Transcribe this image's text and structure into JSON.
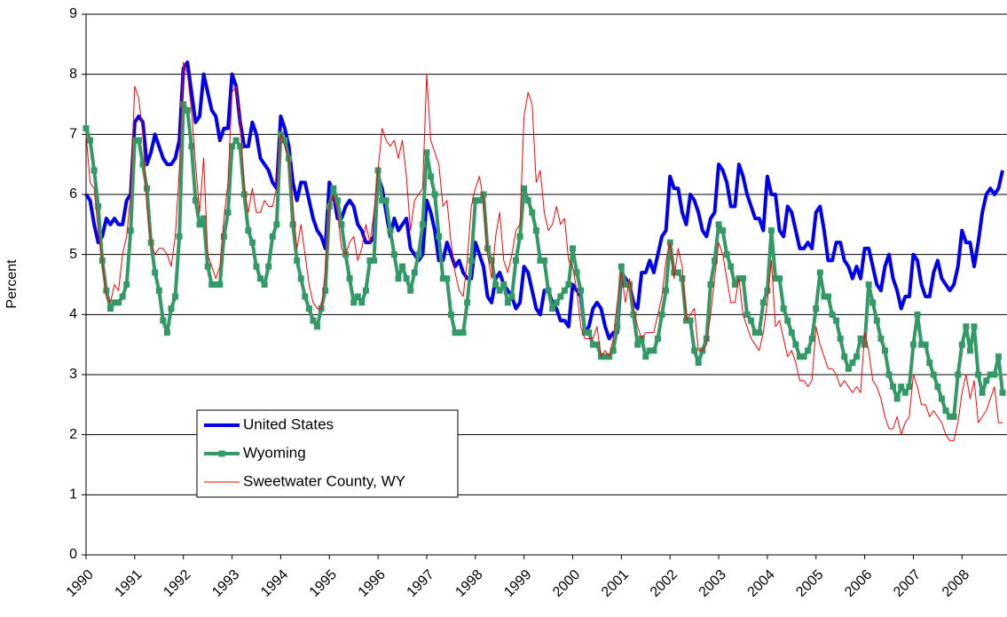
{
  "chart_data": {
    "type": "line",
    "y_label": "Percent",
    "ylim": [
      0,
      9
    ],
    "yticks": [
      0,
      1,
      2,
      3,
      4,
      5,
      6,
      7,
      8,
      9
    ],
    "grid": true,
    "legend": "lower-left",
    "categories": [
      "1990",
      null,
      null,
      null,
      null,
      null,
      null,
      null,
      null,
      null,
      null,
      null,
      "1991",
      null,
      null,
      null,
      null,
      null,
      null,
      null,
      null,
      null,
      null,
      null,
      "1992",
      null,
      null,
      null,
      null,
      null,
      null,
      null,
      null,
      null,
      null,
      null,
      "1993",
      null,
      null,
      null,
      null,
      null,
      null,
      null,
      null,
      null,
      null,
      null,
      "1994",
      null,
      null,
      null,
      null,
      null,
      null,
      null,
      null,
      null,
      null,
      null,
      "1995",
      null,
      null,
      null,
      null,
      null,
      null,
      null,
      null,
      null,
      null,
      null,
      "1996",
      null,
      null,
      null,
      null,
      null,
      null,
      null,
      null,
      null,
      null,
      null,
      "1997",
      null,
      null,
      null,
      null,
      null,
      null,
      null,
      null,
      null,
      null,
      null,
      "1998",
      null,
      null,
      null,
      null,
      null,
      null,
      null,
      null,
      null,
      null,
      null,
      "1999",
      null,
      null,
      null,
      null,
      null,
      null,
      null,
      null,
      null,
      null,
      null,
      "2000",
      null,
      null,
      null,
      null,
      null,
      null,
      null,
      null,
      null,
      null,
      null,
      "2001",
      null,
      null,
      null,
      null,
      null,
      null,
      null,
      null,
      null,
      null,
      null,
      "2002",
      null,
      null,
      null,
      null,
      null,
      null,
      null,
      null,
      null,
      null,
      null,
      "2003",
      null,
      null,
      null,
      null,
      null,
      null,
      null,
      null,
      null,
      null,
      null,
      "2004",
      null,
      null,
      null,
      null,
      null,
      null,
      null,
      null,
      null,
      null,
      null,
      "2005",
      null,
      null,
      null,
      null,
      null,
      null,
      null,
      null,
      null,
      null,
      null,
      "2006",
      null,
      null,
      null,
      null,
      null,
      null,
      null,
      null,
      null,
      null,
      null,
      "2007",
      null,
      null,
      null,
      null,
      null,
      null,
      null,
      null,
      null,
      null,
      null,
      "2008",
      null,
      null,
      null,
      null,
      null,
      null,
      null,
      null,
      null,
      null
    ],
    "series": [
      {
        "name": "United States",
        "color": "#0000ee",
        "width": 4,
        "marker": false,
        "values": [
          6.0,
          5.9,
          5.5,
          5.2,
          5.3,
          5.6,
          5.5,
          5.6,
          5.5,
          5.5,
          5.9,
          6.0,
          7.2,
          7.3,
          7.2,
          6.5,
          6.7,
          7.0,
          6.8,
          6.6,
          6.5,
          6.5,
          6.6,
          6.9,
          8.1,
          8.2,
          7.7,
          7.2,
          7.3,
          8.0,
          7.7,
          7.4,
          7.3,
          6.9,
          7.1,
          7.1,
          8.0,
          7.8,
          7.2,
          6.8,
          6.8,
          7.2,
          7.0,
          6.6,
          6.5,
          6.4,
          6.2,
          6.1,
          7.3,
          7.1,
          6.8,
          6.2,
          5.9,
          6.2,
          6.2,
          5.9,
          5.6,
          5.4,
          5.3,
          5.1,
          6.2,
          6.0,
          5.6,
          5.6,
          5.8,
          5.9,
          5.8,
          5.5,
          5.4,
          5.2,
          5.2,
          5.3,
          6.3,
          6.1,
          5.7,
          5.3,
          5.6,
          5.4,
          5.5,
          5.6,
          5.1,
          5.0,
          4.9,
          5.0,
          5.9,
          5.7,
          5.4,
          4.9,
          4.9,
          5.2,
          5.0,
          4.8,
          4.9,
          4.7,
          4.6,
          4.6,
          5.2,
          5.0,
          4.8,
          4.3,
          4.2,
          4.6,
          4.7,
          4.5,
          4.4,
          4.3,
          4.1,
          4.2,
          4.8,
          4.7,
          4.4,
          4.1,
          4.0,
          4.4,
          4.4,
          4.2,
          4.1,
          3.9,
          3.9,
          3.8,
          4.5,
          4.4,
          4.3,
          3.7,
          3.8,
          4.1,
          4.2,
          4.1,
          3.8,
          3.6,
          3.7,
          3.7,
          4.7,
          4.6,
          4.5,
          4.2,
          4.1,
          4.7,
          4.7,
          4.9,
          4.7,
          5.0,
          5.3,
          5.4,
          6.3,
          6.1,
          6.1,
          5.7,
          5.5,
          6.0,
          5.9,
          5.7,
          5.4,
          5.3,
          5.6,
          5.7,
          6.5,
          6.4,
          6.2,
          5.8,
          5.8,
          6.5,
          6.3,
          6.0,
          5.8,
          5.6,
          5.6,
          5.4,
          6.3,
          6.0,
          6.0,
          5.4,
          5.3,
          5.8,
          5.7,
          5.4,
          5.1,
          5.1,
          5.2,
          5.1,
          5.7,
          5.8,
          5.4,
          4.9,
          4.9,
          5.2,
          5.2,
          4.9,
          4.8,
          4.6,
          4.8,
          4.6,
          5.1,
          5.1,
          4.8,
          4.5,
          4.4,
          4.8,
          5.0,
          4.6,
          4.4,
          4.1,
          4.3,
          4.3,
          5.0,
          4.9,
          4.5,
          4.3,
          4.3,
          4.7,
          4.9,
          4.6,
          4.5,
          4.4,
          4.5,
          4.8,
          5.4,
          5.2,
          5.2,
          4.8,
          5.2,
          5.7,
          6.0,
          6.1,
          6.0,
          6.1,
          6.4
        ]
      },
      {
        "name": "Wyoming",
        "color": "#339966",
        "width": 4,
        "marker": true,
        "values": [
          7.1,
          6.9,
          6.4,
          5.8,
          4.9,
          4.4,
          4.1,
          4.2,
          4.2,
          4.3,
          4.5,
          5.4,
          6.9,
          6.9,
          6.5,
          6.1,
          5.2,
          4.7,
          4.4,
          3.9,
          3.7,
          4.1,
          4.3,
          5.3,
          7.5,
          7.4,
          6.8,
          5.9,
          5.5,
          5.6,
          4.8,
          4.5,
          4.5,
          4.5,
          5.3,
          5.7,
          6.8,
          6.9,
          6.8,
          6.0,
          5.4,
          5.2,
          4.8,
          4.6,
          4.5,
          4.8,
          5.3,
          5.5,
          7.0,
          6.9,
          6.6,
          5.5,
          4.9,
          4.6,
          4.3,
          4.1,
          3.9,
          3.8,
          4.1,
          4.4,
          5.8,
          6.1,
          5.9,
          5.5,
          5.0,
          4.6,
          4.2,
          4.3,
          4.2,
          4.4,
          4.9,
          4.9,
          6.4,
          5.9,
          5.9,
          5.4,
          5.0,
          4.6,
          4.8,
          4.6,
          4.4,
          4.7,
          5.0,
          5.5,
          6.7,
          6.3,
          6.0,
          5.3,
          4.6,
          4.6,
          4.0,
          3.7,
          3.7,
          3.7,
          4.2,
          4.9,
          5.9,
          5.9,
          6.0,
          5.1,
          4.9,
          4.5,
          4.4,
          4.5,
          4.2,
          4.3,
          4.9,
          5.3,
          6.1,
          5.9,
          5.7,
          5.4,
          4.9,
          4.9,
          4.4,
          4.1,
          4.2,
          4.3,
          4.4,
          4.5,
          5.1,
          4.7,
          4.4,
          3.7,
          3.7,
          3.5,
          3.5,
          3.3,
          3.3,
          3.3,
          3.4,
          3.8,
          4.8,
          4.5,
          4.5,
          4.0,
          3.5,
          3.6,
          3.3,
          3.4,
          3.4,
          3.6,
          4.0,
          4.4,
          5.2,
          4.7,
          4.7,
          4.6,
          3.9,
          3.9,
          3.4,
          3.2,
          3.4,
          3.6,
          4.5,
          4.9,
          5.5,
          5.4,
          5.0,
          4.8,
          4.5,
          4.6,
          4.6,
          4.0,
          3.9,
          3.7,
          3.7,
          4.2,
          4.4,
          5.4,
          4.6,
          4.6,
          4.1,
          3.9,
          3.7,
          3.5,
          3.3,
          3.3,
          3.4,
          3.6,
          4.1,
          4.7,
          4.3,
          4.3,
          4.0,
          3.9,
          3.6,
          3.3,
          3.1,
          3.2,
          3.3,
          3.6,
          3.5,
          4.5,
          4.2,
          3.9,
          3.6,
          3.4,
          3.0,
          2.8,
          2.6,
          2.8,
          2.7,
          2.8,
          3.5,
          4.0,
          3.5,
          3.5,
          3.2,
          3.0,
          2.8,
          2.6,
          2.4,
          2.3,
          2.3,
          3.0,
          3.5,
          3.8,
          3.4,
          3.8,
          3.0,
          2.7,
          2.9,
          3.0,
          3.0,
          3.3,
          2.7
        ]
      },
      {
        "name": "Sweetwater County, WY",
        "color": "#ff0000",
        "width": 1,
        "marker": false,
        "values": [
          7.0,
          6.2,
          6.1,
          5.4,
          4.9,
          4.3,
          4.2,
          4.5,
          4.4,
          5.0,
          5.3,
          6.0,
          7.8,
          7.6,
          7.0,
          5.8,
          5.2,
          5.0,
          5.1,
          5.1,
          5.0,
          4.8,
          5.3,
          6.4,
          8.2,
          8.0,
          7.4,
          6.5,
          5.7,
          6.6,
          5.0,
          4.8,
          4.6,
          4.8,
          5.6,
          6.2,
          7.7,
          7.8,
          7.2,
          6.1,
          5.7,
          6.1,
          5.7,
          5.7,
          5.9,
          5.8,
          5.8,
          6.1,
          7.0,
          6.8,
          6.6,
          5.8,
          5.1,
          5.5,
          5.0,
          4.5,
          4.2,
          4.1,
          4.1,
          4.7,
          5.8,
          6.0,
          5.7,
          5.1,
          5.0,
          5.2,
          5.3,
          4.9,
          5.1,
          5.5,
          5.2,
          5.7,
          6.4,
          7.1,
          6.9,
          6.8,
          6.9,
          6.6,
          6.9,
          6.3,
          5.4,
          5.9,
          6.0,
          6.1,
          8.0,
          6.9,
          6.7,
          6.5,
          5.8,
          5.9,
          5.2,
          4.7,
          4.4,
          4.3,
          4.9,
          5.8,
          6.1,
          6.3,
          5.9,
          5.0,
          4.6,
          5.3,
          5.7,
          4.9,
          4.7,
          5.0,
          5.4,
          5.5,
          7.3,
          7.7,
          7.5,
          6.2,
          6.4,
          5.7,
          5.4,
          5.5,
          5.8,
          5.5,
          5.6,
          4.9,
          4.8,
          4.4,
          3.8,
          3.6,
          3.6,
          3.6,
          3.8,
          3.3,
          3.4,
          3.3,
          3.6,
          4.2,
          4.7,
          4.2,
          4.6,
          4.1,
          3.8,
          3.6,
          3.7,
          3.7,
          3.7,
          4.0,
          4.3,
          4.9,
          5.2,
          4.6,
          5.1,
          4.8,
          3.9,
          4.0,
          4.1,
          3.4,
          3.4,
          3.5,
          4.0,
          4.6,
          5.2,
          5.0,
          4.6,
          4.2,
          4.2,
          4.6,
          4.0,
          3.8,
          3.6,
          3.5,
          3.4,
          3.7,
          4.2,
          4.9,
          3.8,
          3.9,
          3.6,
          3.3,
          3.4,
          3.2,
          2.9,
          2.9,
          2.8,
          2.9,
          3.8,
          3.5,
          3.3,
          3.1,
          3.1,
          3.0,
          2.8,
          2.9,
          2.8,
          2.7,
          2.8,
          2.7,
          3.7,
          3.4,
          2.9,
          2.8,
          2.6,
          2.3,
          2.1,
          2.1,
          2.3,
          2.0,
          2.2,
          2.3,
          3.0,
          2.8,
          2.5,
          2.5,
          2.3,
          2.4,
          2.3,
          2.2,
          2.0,
          1.9,
          1.9,
          2.2,
          2.7,
          3.0,
          2.6,
          2.9,
          2.2,
          2.3,
          2.4,
          2.6,
          2.8,
          2.2,
          2.2
        ]
      }
    ]
  }
}
